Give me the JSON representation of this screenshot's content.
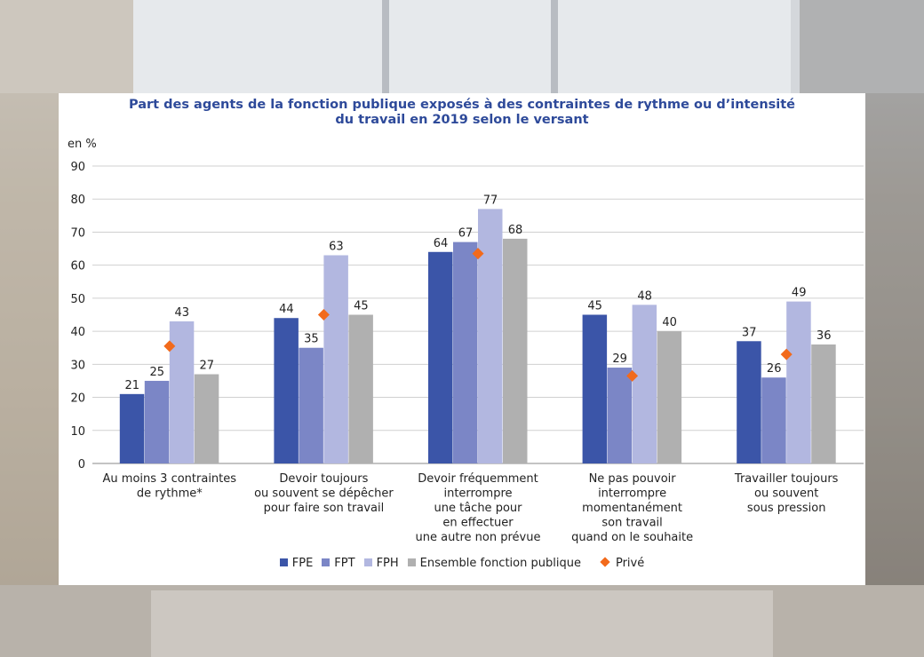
{
  "chart_data": {
    "type": "bar",
    "title_lines": [
      "Part des agents de la fonction publique exposés à des contraintes de rythme ou d’intensité",
      "du travail en 2019 selon le versant"
    ],
    "ylabel": "en %",
    "ylim": [
      0,
      90
    ],
    "yticks": [
      0,
      10,
      20,
      30,
      40,
      50,
      60,
      70,
      80,
      90
    ],
    "grid": true,
    "legend_position": "bottom",
    "categories": [
      [
        "Au moins 3 contraintes",
        "de rythme*"
      ],
      [
        "Devoir toujours",
        "ou souvent se dépêcher",
        "pour faire son travail"
      ],
      [
        "Devoir fréquemment",
        "interrompre",
        "une tâche pour",
        "en effectuer",
        "une autre non prévue"
      ],
      [
        "Ne pas pouvoir",
        "interrompre",
        "momentanément",
        "son travail",
        "quand on le souhaite"
      ],
      [
        "Travailler toujours",
        "ou souvent",
        "sous pression"
      ]
    ],
    "series": [
      {
        "name": "FPE",
        "color": "#3b55a8",
        "values": [
          21,
          44,
          64,
          45,
          37
        ]
      },
      {
        "name": "FPT",
        "color": "#7b86c6",
        "values": [
          25,
          35,
          67,
          29,
          26
        ]
      },
      {
        "name": "FPH",
        "color": "#b2b7e0",
        "values": [
          43,
          63,
          77,
          48,
          49
        ]
      },
      {
        "name": "Ensemble fonction publique",
        "color": "#b0b0b0",
        "values": [
          27,
          45,
          68,
          40,
          36
        ]
      }
    ],
    "markers": {
      "name": "Privé",
      "color": "#f26a1b",
      "values": [
        35.5,
        45,
        63.5,
        26.5,
        33
      ]
    }
  }
}
